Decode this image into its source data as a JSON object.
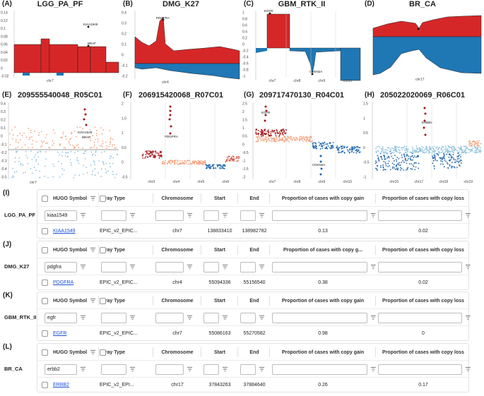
{
  "colors": {
    "gain": "#d62728",
    "loss": "#1f77b4",
    "gain_light": "#f4a582",
    "loss_light": "#92c5de"
  },
  "plots": [
    {
      "id": "A",
      "label": "(A)",
      "title": "LGG_PA_PF",
      "yticks": [
        "0.14",
        "0.12",
        "0.1",
        "0.08",
        "0.06",
        "0.04",
        "0.02",
        "0",
        "-0.02"
      ],
      "xticks": [
        "chr7"
      ],
      "annotations": [
        "KIAA1549",
        "BRAF"
      ]
    },
    {
      "id": "B",
      "label": "(B)",
      "title": "DMG_K27",
      "yticks": [
        "0.4",
        "0.3",
        "0.2",
        "0.1",
        "0",
        "-0.1",
        "-0.2"
      ],
      "xticks": [
        "chr4"
      ],
      "annotations": [
        "PDGFRA"
      ]
    },
    {
      "id": "C",
      "label": "(C)",
      "title": "GBM_RTK_II",
      "yticks": [
        "1",
        "0.8",
        "0.6",
        "0.4",
        "0.2",
        "0",
        "-0.2",
        "-0.4",
        "-0.6",
        "-0.8",
        "-1"
      ],
      "xticks": [
        "chr7",
        "chr8",
        "chr9",
        "chr10"
      ],
      "annotations": [
        "EGFR",
        "CDKN2A"
      ]
    },
    {
      "id": "D",
      "label": "(D)",
      "title": "BR_CA",
      "yticks": [],
      "xticks": [
        "chr17"
      ],
      "annotations": []
    },
    {
      "id": "E",
      "label": "(E)",
      "title": "209555540048_R05C01",
      "yticks": [
        "0.4",
        "0.3",
        "0.2",
        "0.1",
        "0",
        "-0.1",
        "-0.2",
        "-0.3",
        "-0.4",
        "-0.5"
      ],
      "xticks": [
        "chr7"
      ],
      "annotations": [
        "KIAA1549",
        "BRAF"
      ]
    },
    {
      "id": "F",
      "label": "(F)",
      "title": "206915420068_R07C01",
      "yticks": [
        "2",
        "1.5",
        "1",
        "0.5",
        "0",
        "-0.5"
      ],
      "xticks": [
        "chr3",
        "chr4",
        "chr5",
        "chr6"
      ],
      "annotations": [
        "PDGFRA"
      ]
    },
    {
      "id": "G",
      "label": "(G)",
      "title": "209717470130_R04C01",
      "yticks": [
        "2.5",
        "2",
        "1.5",
        "1",
        "0.5",
        "0",
        "-0.5",
        "-1",
        "-1.5",
        "-2"
      ],
      "xticks": [
        "chr7",
        "chr8",
        "chr9",
        "chr10"
      ],
      "annotations": [
        "EGFR",
        "CDKN2A"
      ]
    },
    {
      "id": "H",
      "label": "(H)",
      "title": "205022020069_R06C01",
      "yticks": [
        "1.5",
        "1",
        "0.5",
        "0",
        "-0.5",
        "-1"
      ],
      "xticks": [
        "chr16",
        "chr17",
        "chr18",
        "chr19"
      ],
      "annotations": [
        "ERBB2"
      ]
    }
  ],
  "grids": [
    {
      "label": "(I)",
      "row_name": "LGG_PA_PF",
      "headers": [
        "HUGO Symbol",
        "Array Type",
        "Chromosome",
        "Start",
        "End",
        "Proportion of cases with copy gain",
        "Proportion of cases with copy loss"
      ],
      "filter_value": "kiaa1549",
      "row": [
        "KIAA1549",
        "EPIC_v2_EPIC...",
        "chr7",
        "138833410",
        "138982782",
        "0.13",
        "0.02"
      ]
    },
    {
      "label": "(J)",
      "row_name": "DMG_K27",
      "headers": [
        "HUGO Symbol",
        "Array Type",
        "Chromosome",
        "Start",
        "End",
        "Proportion of cases with copy g...",
        "Proportion of cases with copy loss"
      ],
      "filter_value": "pdgfra",
      "row": [
        "PDGFRA",
        "EPIC_v2_EPIC...",
        "chr4",
        "55094336",
        "55156540",
        "0.38",
        "0.02"
      ]
    },
    {
      "label": "(K)",
      "row_name": "GBM_RTK_II",
      "headers": [
        "HUGO Symbol",
        "Array Type",
        "Chromosome",
        "Start",
        "End",
        "Proportion of cases with copy gain",
        "Proportion of cases with copy loss"
      ],
      "filter_value": "egfr",
      "row": [
        "EGFR",
        "EPIC_v2_EPIC...",
        "chr7",
        "55086163",
        "55270582",
        "0.98",
        "0"
      ]
    },
    {
      "label": "(L)",
      "row_name": "BR_CA",
      "headers": [
        "HUGO Symbol",
        "Array Type",
        "Chromosome",
        "Start",
        "End",
        "Proportion of cases with copy gain",
        "Proportion of cases with copy loss"
      ],
      "filter_value": "erbb2",
      "row": [
        "ERBB2",
        "EPIC_v2_EPI...",
        "chr17",
        "37843263",
        "37884640",
        "0.26",
        "0.17"
      ]
    }
  ]
}
